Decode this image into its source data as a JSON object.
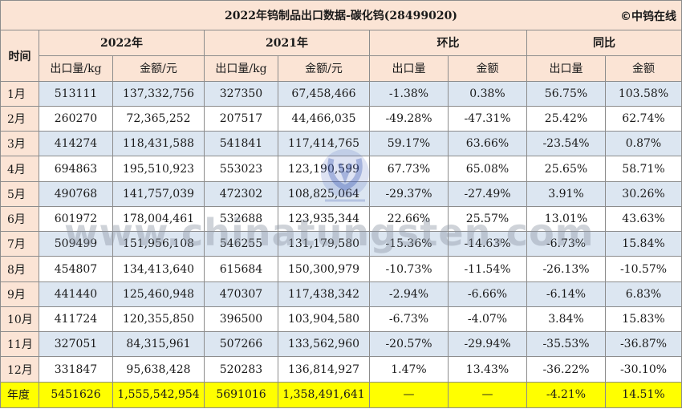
{
  "title": "2022年钨制品出口数据-碳化钨(28499020)",
  "brand": "©中钨在线",
  "watermark": "www.chinatungsten.com",
  "headers": {
    "time": "时间",
    "year2022": "2022年",
    "year2021": "2021年",
    "mom": "环比",
    "yoy": "同比",
    "volume": "出口量/kg",
    "amount": "金额/元",
    "volume_short": "出口量",
    "amount_short": "金额"
  },
  "rows": [
    {
      "month": "1月",
      "v2022": "513111",
      "a2022": "137,332,756",
      "v2021": "327350",
      "a2021": "67,458,466",
      "mom_v": "-1.38%",
      "mom_a": "0.38%",
      "yoy_v": "56.75%",
      "yoy_a": "103.58%"
    },
    {
      "month": "2月",
      "v2022": "260270",
      "a2022": "72,365,252",
      "v2021": "207517",
      "a2021": "44,466,035",
      "mom_v": "-49.28%",
      "mom_a": "-47.31%",
      "yoy_v": "25.42%",
      "yoy_a": "62.74%"
    },
    {
      "month": "3月",
      "v2022": "414274",
      "a2022": "118,431,588",
      "v2021": "541841",
      "a2021": "117,414,765",
      "mom_v": "59.17%",
      "mom_a": "63.66%",
      "yoy_v": "-23.54%",
      "yoy_a": "0.87%"
    },
    {
      "month": "4月",
      "v2022": "694863",
      "a2022": "195,510,923",
      "v2021": "553023",
      "a2021": "123,190,599",
      "mom_v": "67.73%",
      "mom_a": "65.08%",
      "yoy_v": "25.65%",
      "yoy_a": "58.71%"
    },
    {
      "month": "5月",
      "v2022": "490768",
      "a2022": "141,757,039",
      "v2021": "472302",
      "a2021": "108,825,064",
      "mom_v": "-29.37%",
      "mom_a": "-27.49%",
      "yoy_v": "3.91%",
      "yoy_a": "30.26%"
    },
    {
      "month": "6月",
      "v2022": "601972",
      "a2022": "178,004,461",
      "v2021": "532688",
      "a2021": "123,935,344",
      "mom_v": "22.66%",
      "mom_a": "25.57%",
      "yoy_v": "13.01%",
      "yoy_a": "43.63%"
    },
    {
      "month": "7月",
      "v2022": "509499",
      "a2022": "151,956,108",
      "v2021": "546255",
      "a2021": "131,179,580",
      "mom_v": "-15.36%",
      "mom_a": "-14.63%",
      "yoy_v": "-6.73%",
      "yoy_a": "15.84%"
    },
    {
      "month": "8月",
      "v2022": "454807",
      "a2022": "134,413,640",
      "v2021": "615684",
      "a2021": "150,300,979",
      "mom_v": "-10.73%",
      "mom_a": "-11.54%",
      "yoy_v": "-26.13%",
      "yoy_a": "-10.57%"
    },
    {
      "month": "9月",
      "v2022": "441440",
      "a2022": "125,460,948",
      "v2021": "470307",
      "a2021": "117,438,342",
      "mom_v": "-2.94%",
      "mom_a": "-6.66%",
      "yoy_v": "-6.14%",
      "yoy_a": "6.83%"
    },
    {
      "month": "10月",
      "v2022": "411724",
      "a2022": "120,355,850",
      "v2021": "396500",
      "a2021": "103,904,580",
      "mom_v": "-6.73%",
      "mom_a": "-4.07%",
      "yoy_v": "3.84%",
      "yoy_a": "15.83%"
    },
    {
      "month": "11月",
      "v2022": "327051",
      "a2022": "84,315,961",
      "v2021": "507266",
      "a2021": "133,562,960",
      "mom_v": "-20.57%",
      "mom_a": "-29.94%",
      "yoy_v": "-35.53%",
      "yoy_a": "-36.87%"
    },
    {
      "month": "12月",
      "v2022": "331847",
      "a2022": "95,638,428",
      "v2021": "520283",
      "a2021": "136,814,927",
      "mom_v": "1.47%",
      "mom_a": "13.43%",
      "yoy_v": "-36.22%",
      "yoy_a": "-30.10%"
    }
  ],
  "total": {
    "label": "年度",
    "v2022": "5451626",
    "a2022": "1,555,542,954",
    "v2021": "5691016",
    "a2021": "1,358,491,641",
    "mom_v": "—",
    "mom_a": "—",
    "yoy_v": "-4.21%",
    "yoy_a": "14.51%"
  },
  "colors": {
    "header_bg": "#fbe4d5",
    "row_alt": "#dce6f1",
    "total_bg": "#ffff00",
    "positive": "#e0201b",
    "negative": "#1f9a2e"
  }
}
